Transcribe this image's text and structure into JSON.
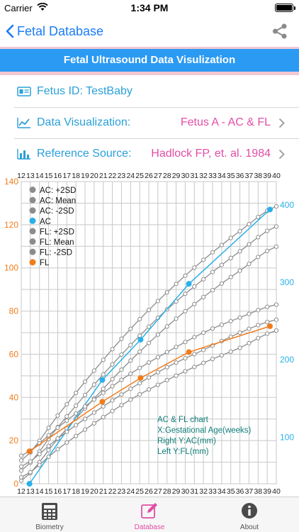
{
  "status_bar": {
    "carrier": "Carrier",
    "time": "1:34 PM"
  },
  "nav": {
    "back_label": "Fetal Database",
    "share_icon": "share-icon"
  },
  "title": "Fetal Ultrasound Data Visulization",
  "rows": {
    "fetus_id": {
      "label": "Fetus ID: TestBaby"
    },
    "visualization": {
      "label": "Data Visualization:",
      "value": "Fetus A - AC & FL"
    },
    "reference": {
      "label": "Reference Source:",
      "value": "Hadlock FP, et. al. 1984"
    }
  },
  "colors": {
    "accent": "#1a7cf5",
    "pink": "#e24da6",
    "teal": "#2aa0d8",
    "ac_line": "#2ab0e8",
    "fl_line": "#f07c1c",
    "ref_line": "#8c8c8c"
  },
  "chart_data": {
    "type": "line",
    "x_ticks": [
      "12",
      "13",
      "14",
      "15",
      "16",
      "17",
      "18",
      "19",
      "20",
      "21",
      "22",
      "23",
      "24",
      "25",
      "26",
      "27",
      "28",
      "29",
      "30",
      "31",
      "32",
      "33",
      "34",
      "35",
      "36",
      "37",
      "38",
      "39",
      "40"
    ],
    "y_left_ticks": [
      "0",
      "20",
      "40",
      "60",
      "80",
      "100",
      "120",
      "140"
    ],
    "y_right_ticks": [
      "100",
      "200",
      "300",
      "400"
    ],
    "xlim": [
      12,
      40
    ],
    "ylim_left": [
      0,
      140
    ],
    "ylim_right": [
      40,
      430
    ],
    "legend": [
      "AC: +2SD",
      "AC: Mean",
      "AC: -2SD",
      "AC",
      "FL: +2SD",
      "FL: Mean",
      "FL: -2SD",
      "FL"
    ],
    "legend_position": "top-left",
    "annotation": [
      "AC & FL chart",
      "X:Gestational Age(weeks)",
      "Right Y:AC(mm)",
      "Left Y:FL(mm)"
    ],
    "series": [
      {
        "name": "AC: +2SD",
        "axis": "right",
        "x": [
          12,
          16,
          20,
          24,
          28,
          32,
          36,
          40
        ],
        "y": [
          70,
          128,
          186,
          240,
          287,
          329,
          366,
          398
        ]
      },
      {
        "name": "AC: Mean",
        "axis": "right",
        "x": [
          12,
          16,
          20,
          24,
          28,
          32,
          36,
          40
        ],
        "y": [
          57,
          113,
          168,
          219,
          265,
          304,
          340,
          372
        ]
      },
      {
        "name": "AC: -2SD",
        "axis": "right",
        "x": [
          12,
          16,
          20,
          24,
          28,
          32,
          36,
          40
        ],
        "y": [
          44,
          98,
          150,
          199,
          243,
          281,
          315,
          346
        ]
      },
      {
        "name": "AC",
        "axis": "right",
        "x": [
          12.9,
          20.9,
          25.1,
          30.4,
          39.3
        ],
        "y": [
          40,
          174,
          226,
          298,
          394
        ]
      },
      {
        "name": "FL: +2SD",
        "axis": "left",
        "x": [
          12,
          16,
          20,
          24,
          28,
          32,
          36,
          40
        ],
        "y": [
          13,
          26,
          39,
          51,
          61,
          70,
          77,
          83
        ]
      },
      {
        "name": "FL: Mean",
        "axis": "left",
        "x": [
          12,
          16,
          20,
          24,
          28,
          32,
          36,
          40
        ],
        "y": [
          8,
          21,
          33,
          44,
          54,
          62,
          70,
          76
        ]
      },
      {
        "name": "FL: -2SD",
        "axis": "left",
        "x": [
          12,
          16,
          20,
          24,
          28,
          32,
          36,
          40
        ],
        "y": [
          3,
          16,
          28,
          39,
          48,
          56,
          63,
          71
        ]
      },
      {
        "name": "FL",
        "axis": "left",
        "x": [
          12.9,
          20.9,
          25.1,
          30.4,
          39.3
        ],
        "y": [
          15,
          38,
          49,
          61,
          73
        ]
      }
    ]
  },
  "tabs": [
    {
      "label": "Biometry",
      "icon": "calculator-icon"
    },
    {
      "label": "Database",
      "icon": "edit-icon"
    },
    {
      "label": "About",
      "icon": "info-icon"
    }
  ]
}
